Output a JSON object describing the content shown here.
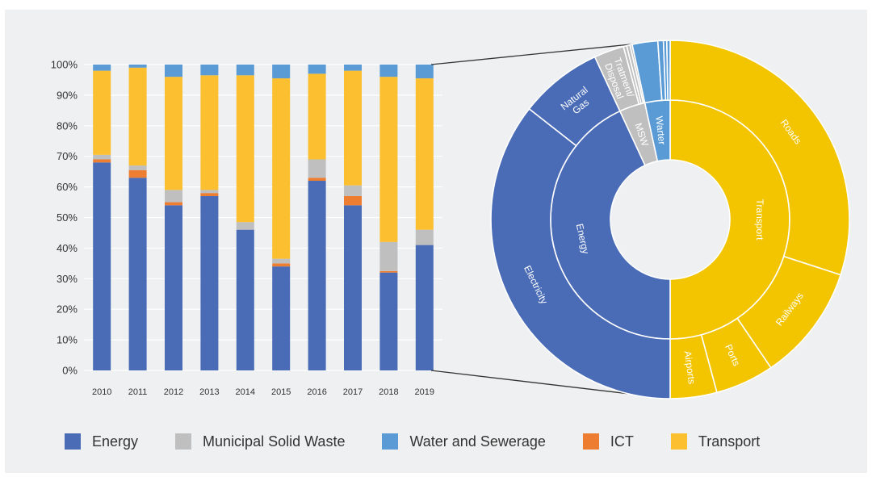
{
  "colors": {
    "energy": "#4a6cb7",
    "msw": "#bfbfbf",
    "water": "#5b9bd5",
    "ict": "#ed7d31",
    "transport_bar": "#fbbf2f",
    "transport_ring": "#f3c400",
    "gridline": "#ffffff",
    "connector": "#333333"
  },
  "chart_data": [
    {
      "type": "bar",
      "stacked": true,
      "normalized": true,
      "categories": [
        "2010",
        "2011",
        "2012",
        "2013",
        "2014",
        "2015",
        "2016",
        "2017",
        "2018",
        "2019"
      ],
      "series": [
        {
          "name": "Energy",
          "key": "energy",
          "values": [
            68,
            63,
            54,
            57,
            46,
            34,
            62,
            54,
            32,
            41
          ]
        },
        {
          "name": "ICT",
          "key": "ict",
          "values": [
            1,
            2.5,
            1,
            1,
            0,
            1,
            1,
            3,
            0.5,
            0
          ]
        },
        {
          "name": "Municipal Solid Waste",
          "key": "msw",
          "values": [
            1.5,
            1.5,
            4,
            1,
            2.5,
            1.5,
            6,
            3.5,
            9.5,
            5
          ]
        },
        {
          "name": "Transport",
          "key": "transport_bar",
          "values": [
            27.5,
            32,
            37,
            37.5,
            48,
            59,
            28,
            37.5,
            54,
            49.5
          ]
        },
        {
          "name": "Water and Sewerage",
          "key": "water",
          "values": [
            2,
            1,
            4,
            3.5,
            3.5,
            4.5,
            3,
            2,
            4,
            4.5
          ]
        }
      ],
      "y_ticks": [
        "0%",
        "10%",
        "20%",
        "30%",
        "40%",
        "50%",
        "60%",
        "70%",
        "80%",
        "90%",
        "100%"
      ],
      "ylim": [
        0,
        100
      ],
      "grid": true,
      "legend_position": "bottom"
    },
    {
      "type": "pie",
      "variant": "sunburst",
      "inner_ring": [
        {
          "label": "Transport",
          "value": 50.0,
          "color_key": "transport_ring"
        },
        {
          "label": "Energy",
          "value": 43.1,
          "color_key": "energy"
        },
        {
          "label": "MSW",
          "value": 3.5,
          "color_key": "msw"
        },
        {
          "label": "Warter",
          "value": 3.4,
          "color_key": "water"
        }
      ],
      "outer_ring": [
        {
          "label": "Roads",
          "value": 30.0,
          "color_key": "transport_ring"
        },
        {
          "label": "Railways",
          "value": 10.5,
          "color_key": "transport_ring"
        },
        {
          "label": "Ports",
          "value": 5.3,
          "color_key": "transport_ring"
        },
        {
          "label": "Airports",
          "value": 4.2,
          "color_key": "transport_ring"
        },
        {
          "label": "Electricity",
          "value": 35.6,
          "color_key": "energy"
        },
        {
          "label": "Natural Gas",
          "value": 7.5,
          "color_key": "energy"
        },
        {
          "label": "Tratment/ Disposal",
          "value": 2.7,
          "color_key": "msw"
        },
        {
          "label": "",
          "value": 0.3,
          "color_key": "msw"
        },
        {
          "label": "",
          "value": 0.3,
          "color_key": "msw"
        },
        {
          "label": "",
          "value": 0.2,
          "color_key": "msw"
        },
        {
          "label": "",
          "value": 2.3,
          "color_key": "water"
        },
        {
          "label": "",
          "value": 0.5,
          "color_key": "water"
        },
        {
          "label": "",
          "value": 0.3,
          "color_key": "water"
        },
        {
          "label": "",
          "value": 0.3,
          "color_key": "water"
        }
      ]
    }
  ],
  "legend": [
    {
      "label": "Energy",
      "color_key": "energy"
    },
    {
      "label": "Municipal Solid Waste",
      "color_key": "msw"
    },
    {
      "label": "Water and Sewerage",
      "color_key": "water"
    },
    {
      "label": "ICT",
      "color_key": "ict"
    },
    {
      "label": "Transport",
      "color_key": "transport_bar"
    }
  ]
}
